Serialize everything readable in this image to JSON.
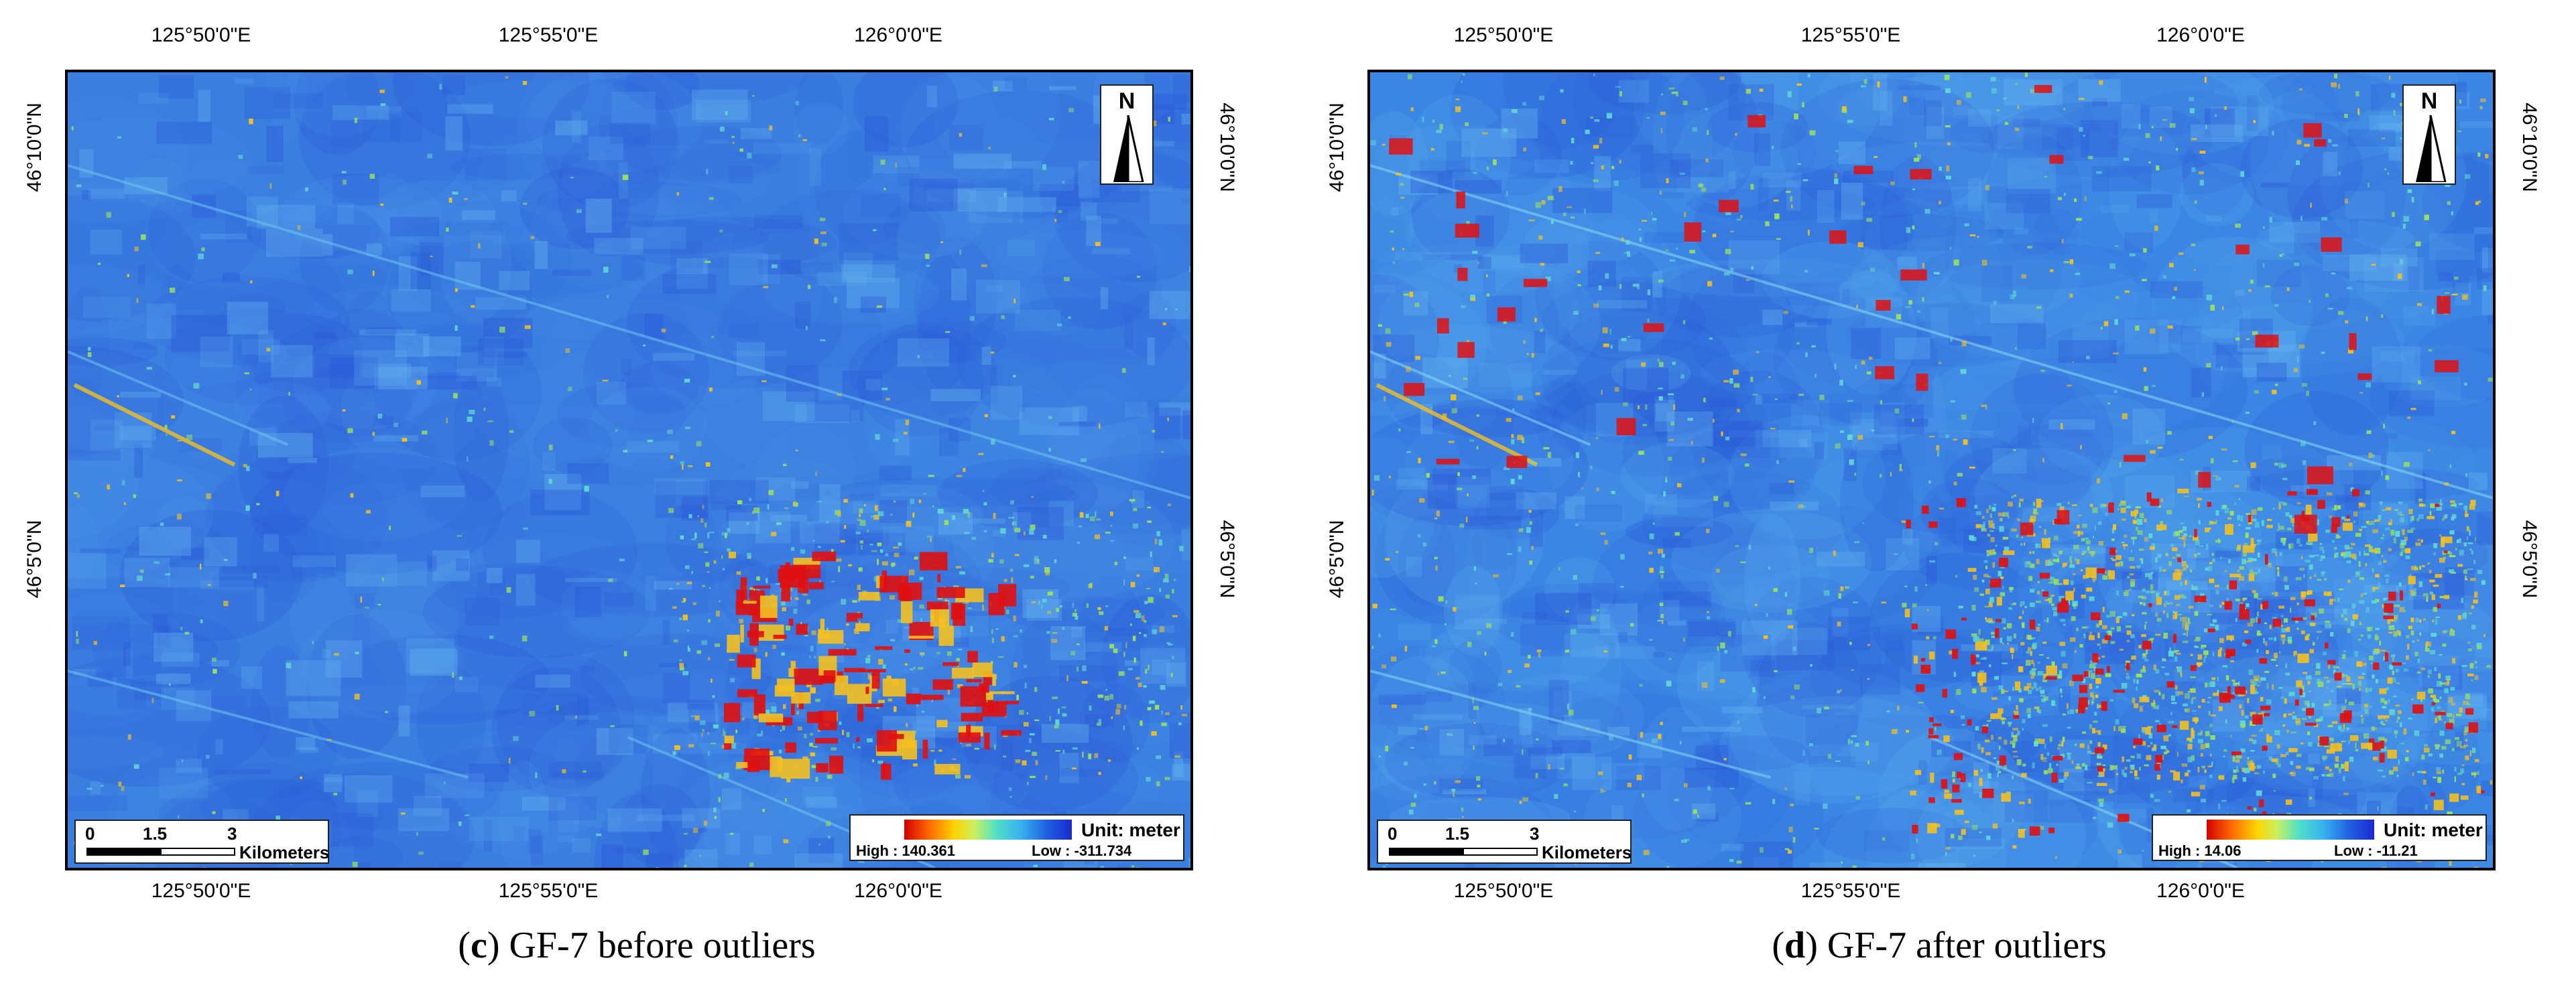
{
  "panels": [
    {
      "caption_letter": "c",
      "caption_text": "GF-7 before outliers",
      "top_ticks": [
        "125°50'0\"E",
        "125°55'0\"E",
        "126°0'0\"E"
      ],
      "bottom_ticks": [
        "125°50'0\"E",
        "125°55'0\"E",
        "126°0'0\"E"
      ],
      "left_ticks": [
        "46°10'0\"N",
        "46°5'0\"N"
      ],
      "right_ticks": [
        "46°10'0\"N",
        "46°5'0\"N"
      ],
      "north_label": "N",
      "scale_numbers": [
        "0",
        "1.5",
        "3"
      ],
      "scale_unit": "Kilometers",
      "legend_unit": "Unit: meter",
      "legend_high": "High : 140.361",
      "legend_low": "Low : -311.734",
      "map_palette": {
        "base": "#3a7ee0",
        "hot": "#e01010",
        "warm": "#f4c020",
        "mid": "#60d8d0",
        "cool": "#2a58d8"
      }
    },
    {
      "caption_letter": "d",
      "caption_text": "GF-7 after outliers",
      "top_ticks": [
        "125°50'0\"E",
        "125°55'0\"E",
        "126°0'0\"E"
      ],
      "bottom_ticks": [
        "125°50'0\"E",
        "125°55'0\"E",
        "126°0'0\"E"
      ],
      "left_ticks": [
        "46°10'0\"N",
        "46°5'0\"N"
      ],
      "right_ticks": [
        "46°10'0\"N",
        "46°5'0\"N"
      ],
      "north_label": "N",
      "scale_numbers": [
        "0",
        "1.5",
        "3"
      ],
      "scale_unit": "Kilometers",
      "legend_unit": "Unit: meter",
      "legend_high": "High : 14.06",
      "legend_low": "Low : -11.21",
      "map_palette": {
        "base": "#3b86e4",
        "hot": "#e01010",
        "warm": "#f4c020",
        "mid": "#60d8d0",
        "cool": "#2a58d8"
      }
    }
  ]
}
